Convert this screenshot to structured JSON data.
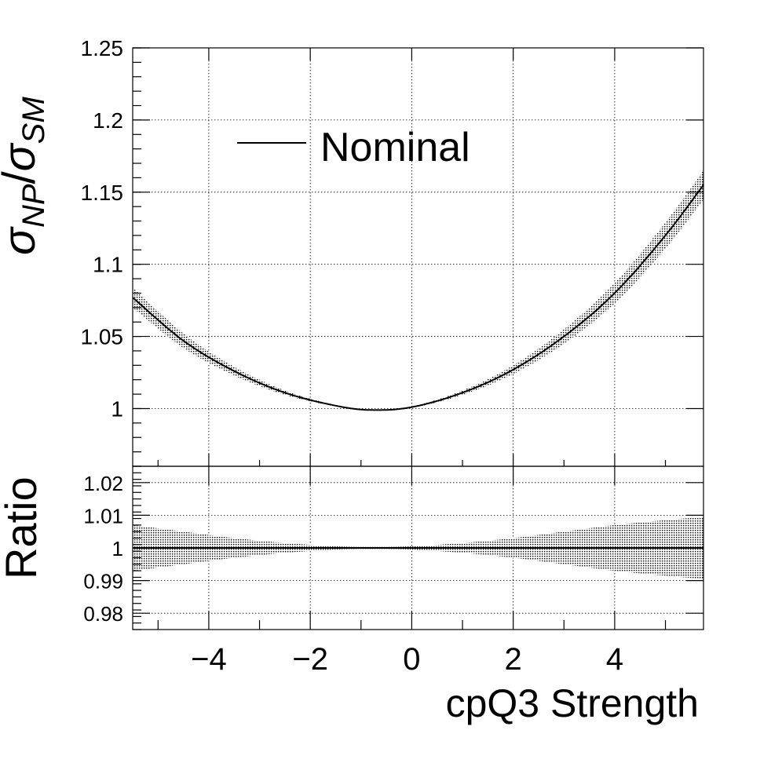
{
  "chart_data": [
    {
      "type": "line",
      "panel": "main",
      "ylabel_main": "σ",
      "ylabel_sub_np": "NP",
      "ylabel_slash": "/",
      "ylabel_sub_sm": "SM",
      "xlim": [
        -5.5,
        5.75
      ],
      "ylim": [
        0.96,
        1.25
      ],
      "yticks": [
        "1",
        "1.05",
        "1.1",
        "1.15",
        "1.2",
        "1.25"
      ],
      "ytick_values": [
        1.0,
        1.05,
        1.1,
        1.15,
        1.2,
        1.25
      ],
      "grid": true,
      "legend_position": "top-left",
      "series": [
        {
          "name": "Nominal",
          "x": [
            -5.5,
            -4.5,
            -3.5,
            -2.5,
            -1.5,
            -0.8,
            0.0,
            1.0,
            2.0,
            3.0,
            4.0,
            5.0,
            5.75
          ],
          "y": [
            1.077,
            1.047,
            1.026,
            1.011,
            1.002,
            0.999,
            1.001,
            1.011,
            1.027,
            1.05,
            1.08,
            1.12,
            1.155
          ],
          "band": [
            0.007,
            0.005,
            0.003,
            0.0015,
            0.0005,
            0.0003,
            0.0005,
            0.0015,
            0.003,
            0.005,
            0.007,
            0.009,
            0.01
          ]
        }
      ]
    },
    {
      "type": "line",
      "panel": "ratio",
      "ylabel": "Ratio",
      "xlabel": "cpQ3 Strength",
      "xlim": [
        -5.5,
        5.75
      ],
      "ylim": [
        0.975,
        1.025
      ],
      "yticks": [
        "0.98",
        "0.99",
        "1",
        "1.01",
        "1.02"
      ],
      "ytick_values": [
        0.98,
        0.99,
        1.0,
        1.01,
        1.02
      ],
      "xticks": [
        "−4",
        "−2",
        "0",
        "2",
        "4"
      ],
      "xtick_values": [
        -4,
        -2,
        0,
        2,
        4
      ],
      "grid": true,
      "series": [
        {
          "x": [
            -5.5,
            -4.5,
            -3.5,
            -2.5,
            -1.5,
            -0.8,
            0.0,
            1.0,
            2.0,
            3.0,
            4.0,
            5.0,
            5.75
          ],
          "y": [
            1,
            1,
            1,
            1,
            1,
            1,
            1,
            1,
            1,
            1,
            1,
            1,
            1
          ],
          "band": [
            0.007,
            0.005,
            0.003,
            0.0015,
            0.0005,
            0.0003,
            0.0005,
            0.0015,
            0.003,
            0.005,
            0.007,
            0.0085,
            0.0095
          ]
        }
      ]
    }
  ]
}
